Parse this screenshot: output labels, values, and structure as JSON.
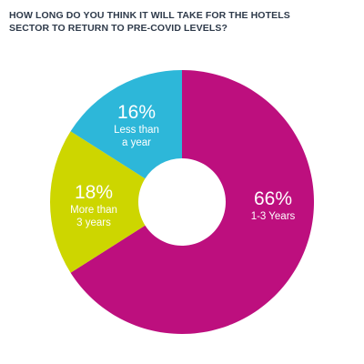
{
  "chart_data": {
    "type": "donut",
    "title": "HOW LONG DO YOU THINK IT WILL TAKE FOR THE HOTELS SECTOR TO RETURN TO PRE-COVID LEVELS?",
    "categories": [
      "1-3 Years",
      "More than 3 years",
      "Less than a year"
    ],
    "values": [
      66,
      18,
      16
    ],
    "value_labels": [
      "66%",
      "18%",
      "16%"
    ],
    "colors": [
      "#bd0f7e",
      "#cdd600",
      "#2db7d9"
    ]
  }
}
